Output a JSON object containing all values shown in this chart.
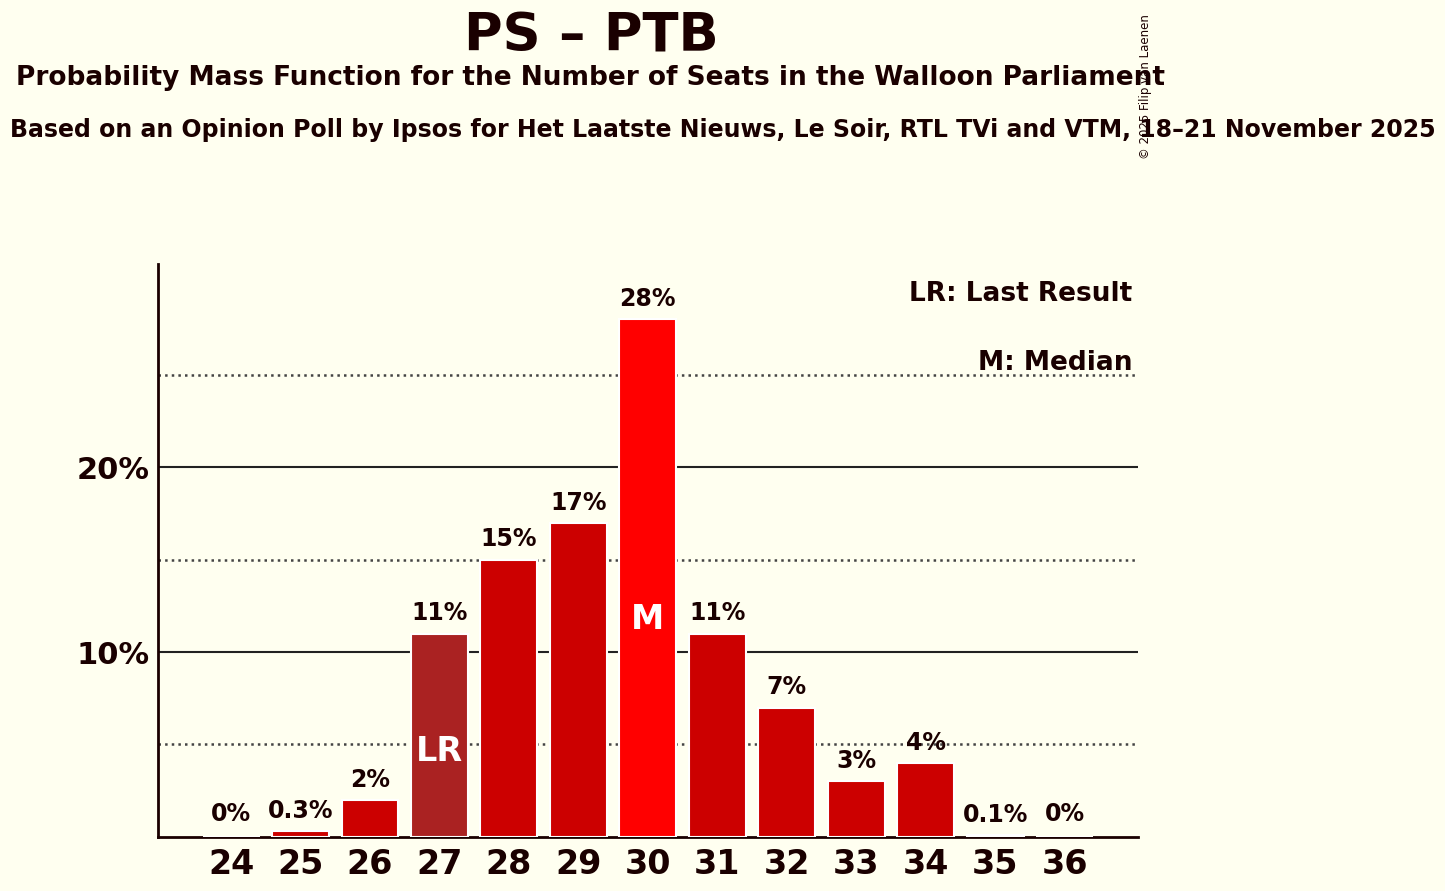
{
  "title": "PS – PTB",
  "subtitle": "Probability Mass Function for the Number of Seats in the Walloon Parliament",
  "sub_subtitle": "Based on an Opinion Poll by Ipsos for Het Laatste Nieuws, Le Soir, RTL TVi and VTM, 18–21 November 2025",
  "copyright": "© 2025 Filip van Laenen",
  "seats": [
    24,
    25,
    26,
    27,
    28,
    29,
    30,
    31,
    32,
    33,
    34,
    35,
    36
  ],
  "probabilities": [
    0.0,
    0.3,
    2.0,
    11.0,
    15.0,
    17.0,
    28.0,
    11.0,
    7.0,
    3.0,
    4.0,
    0.1,
    0.0
  ],
  "labels": [
    "0%",
    "0.3%",
    "2%",
    "11%",
    "15%",
    "17%",
    "28%",
    "11%",
    "7%",
    "3%",
    "4%",
    "0.1%",
    "0%"
  ],
  "lr_seat": 27,
  "median_seat": 30,
  "bar_color_normal": "#CC0000",
  "bar_color_lr": "#AA2222",
  "bar_color_median": "#FF0000",
  "background_color": "#FFFFF0",
  "text_color": "#1A0000",
  "yticks": [
    10,
    20
  ],
  "dotted_lines": [
    5,
    15,
    25
  ],
  "ylim": [
    0,
    31
  ],
  "legend_lr": "LR: Last Result",
  "legend_m": "M: Median",
  "title_fontsize": 38,
  "subtitle_fontsize": 19,
  "sub_subtitle_fontsize": 17,
  "bar_label_fontsize": 17,
  "ytick_fontsize": 22,
  "xtick_fontsize": 24,
  "lr_label_fontsize": 24,
  "m_label_fontsize": 24
}
